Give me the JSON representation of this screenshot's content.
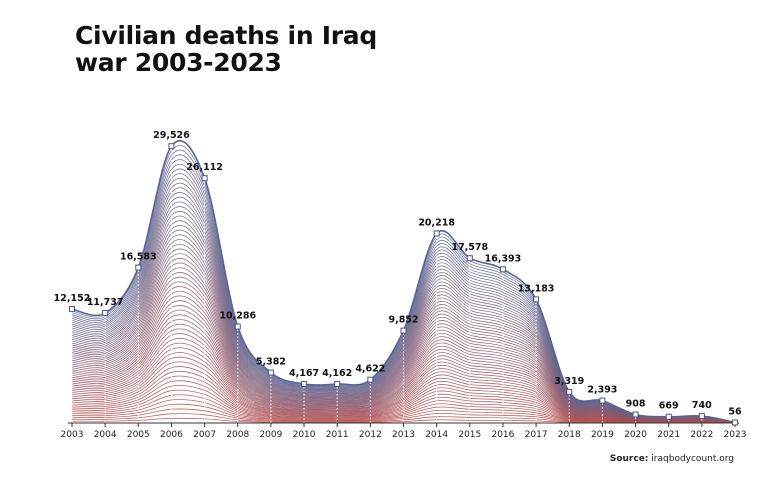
{
  "title_line1": "Civilian deaths in Iraq",
  "title_line2": "war 2003-2023",
  "source_label": "Source:",
  "source_value": "iraqbodycount.org",
  "colors": {
    "top_line": "#5a6593",
    "bottom_line": "#b84a45",
    "axis": "#333333",
    "text": "#111111"
  },
  "chart_data": {
    "type": "area",
    "title": "Civilian deaths in Iraq war 2003-2023",
    "xlabel": "",
    "ylabel": "",
    "ylim": [
      0,
      32000
    ],
    "grid": false,
    "legend": "none",
    "categories": [
      "2003",
      "2004",
      "2005",
      "2006",
      "2007",
      "2008",
      "2009",
      "2010",
      "2011",
      "2012",
      "2013",
      "2014",
      "2015",
      "2016",
      "2017",
      "2018",
      "2019",
      "2020",
      "2021",
      "2022",
      "2023"
    ],
    "values": [
      12152,
      11737,
      16583,
      29526,
      26112,
      10286,
      5382,
      4167,
      4162,
      4622,
      9852,
      20218,
      17578,
      16393,
      13183,
      3319,
      2393,
      908,
      669,
      740,
      56
    ],
    "labels": [
      "12,152",
      "11,737",
      "16,583",
      "29,526",
      "26,112",
      "10,286",
      "5,382",
      "4,167",
      "4,162",
      "4,622",
      "9,852",
      "20,218",
      "17,578",
      "16,393",
      "13,183",
      "3,319",
      "2,393",
      "908",
      "669",
      "740",
      "56"
    ]
  }
}
